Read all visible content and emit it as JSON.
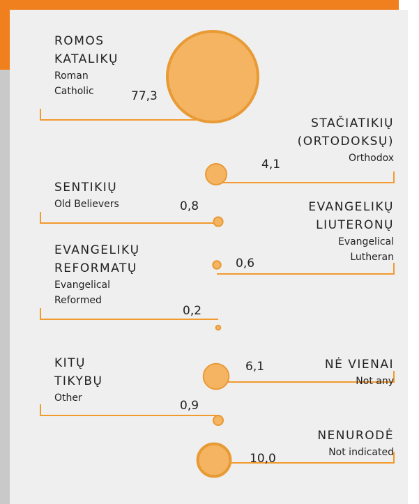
{
  "chart_data": {
    "type": "bubble",
    "categories": [
      "ROMOS KATALIKŲ",
      "STAČIATIKIŲ (ORTODOKSŲ)",
      "SENTIKIŲ",
      "EVANGELIKŲ LIUTERONŲ",
      "EVANGELIKŲ REFORMATŲ",
      "NĖ VIENAI",
      "KITŲ TIKYBŲ",
      "NENURODĖ"
    ],
    "categories_en": [
      "Roman Catholic",
      "Orthodox",
      "Old Believers",
      "Evangelical Lutheran",
      "Evangelical Reformed",
      "Not any",
      "Other",
      "Not indicated"
    ],
    "values": [
      77.3,
      4.1,
      0.8,
      0.6,
      0.2,
      6.1,
      0.9,
      10.0
    ],
    "value_labels": [
      "77,3",
      "4,1",
      "0,8",
      "0,6",
      "0,2",
      "6,1",
      "0,9",
      "10,0"
    ],
    "color": "#f5b461"
  }
}
